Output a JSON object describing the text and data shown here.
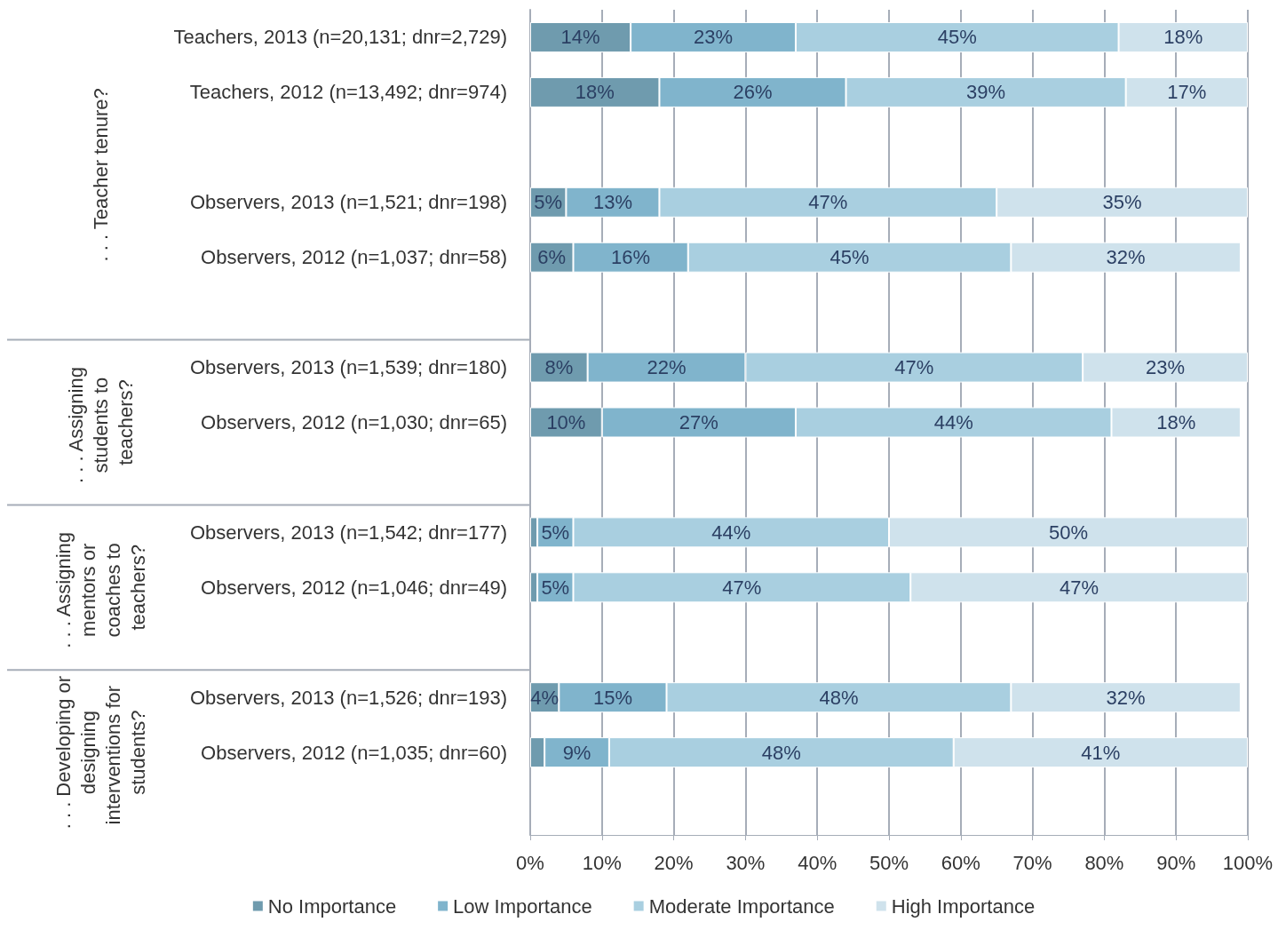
{
  "chart_data": {
    "type": "bar",
    "orientation": "horizontal",
    "stacked": true,
    "categories": [
      "Teachers, 2013 (n=20,131; dnr=2,729)",
      "Teachers, 2012 (n=13,492; dnr=974)",
      null,
      "Observers, 2013 (n=1,521; dnr=198)",
      "Observers, 2012 (n=1,037; dnr=58)",
      null,
      "Observers, 2013 (n=1,539; dnr=180)",
      "Observers, 2012 (n=1,030; dnr=65)",
      null,
      "Observers, 2013 (n=1,542; dnr=177)",
      "Observers, 2012 (n=1,046; dnr=49)",
      null,
      "Observers, 2013 (n=1,526; dnr=193)",
      "Observers, 2012 (n=1,035; dnr=60)",
      null
    ],
    "series": [
      {
        "name": "No Importance",
        "color": "#6f9bae",
        "values": [
          14,
          18,
          null,
          5,
          6,
          null,
          8,
          10,
          null,
          1,
          1,
          null,
          4,
          2,
          null
        ],
        "value_labels": [
          "14%",
          "18%",
          null,
          "5%",
          "6%",
          null,
          "8%",
          "10%",
          null,
          null,
          null,
          null,
          "4%",
          null,
          null
        ]
      },
      {
        "name": "Low Importance",
        "color": "#80b4cc",
        "values": [
          23,
          26,
          null,
          13,
          16,
          null,
          22,
          27,
          null,
          5,
          5,
          null,
          15,
          9,
          null
        ],
        "value_labels": [
          "23%",
          "26%",
          null,
          "13%",
          "16%",
          null,
          "22%",
          "27%",
          null,
          "5%",
          "5%",
          null,
          "15%",
          "9%",
          null
        ]
      },
      {
        "name": "Moderate Importance",
        "color": "#a9cfe0",
        "values": [
          45,
          39,
          null,
          47,
          45,
          null,
          47,
          44,
          null,
          44,
          47,
          null,
          48,
          48,
          null
        ],
        "value_labels": [
          "45%",
          "39%",
          null,
          "47%",
          "45%",
          null,
          "47%",
          "44%",
          null,
          "44%",
          "47%",
          null,
          "48%",
          "48%",
          null
        ]
      },
      {
        "name": "High Importance",
        "color": "#cfe2ec",
        "values": [
          18,
          17,
          null,
          35,
          32,
          null,
          23,
          18,
          null,
          50,
          47,
          null,
          32,
          41,
          null
        ],
        "value_labels": [
          "18%",
          "17%",
          null,
          "35%",
          "32%",
          null,
          "23%",
          "18%",
          null,
          "50%",
          "47%",
          null,
          "32%",
          "41%",
          null
        ]
      }
    ],
    "xlim": [
      0,
      100
    ],
    "xticks": [
      {
        "value": 0,
        "label": "0%"
      },
      {
        "value": 10,
        "label": "10%"
      },
      {
        "value": 20,
        "label": "20%"
      },
      {
        "value": 30,
        "label": "30%"
      },
      {
        "value": 40,
        "label": "40%"
      },
      {
        "value": 50,
        "label": "50%"
      },
      {
        "value": 60,
        "label": "60%"
      },
      {
        "value": 70,
        "label": "70%"
      },
      {
        "value": 80,
        "label": "80%"
      },
      {
        "value": 90,
        "label": "90%"
      },
      {
        "value": 100,
        "label": "100%"
      }
    ],
    "annotations": [
      ". . . Teacher tenure?",
      ". . . Assigning students to teachers?",
      ". . . Assigning mentors or coaches to teachers?",
      ". . . Developing or designing interventions for students?"
    ],
    "grid": "x",
    "legend": "bottom"
  }
}
